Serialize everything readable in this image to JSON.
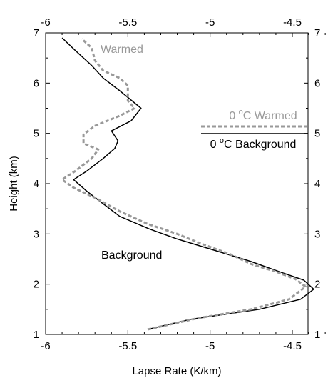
{
  "chart_data": {
    "type": "line",
    "xlabel": "Lapse Rate (K/km)",
    "ylabel": "Height (km)",
    "xlim": [
      -6,
      -4.3
    ],
    "ylim": [
      1,
      7
    ],
    "xticks": [
      -6,
      -5.5,
      -5,
      -4.5
    ],
    "xtick_labels": [
      "-6",
      "-5.5",
      "-5",
      "-4.5"
    ],
    "top_xtick_labels": [
      "-6",
      "-5.5",
      "-5",
      "-4.5"
    ],
    "yticks": [
      1,
      2,
      3,
      4,
      5,
      6,
      7
    ],
    "ytick_labels": [
      "1",
      "2",
      "3",
      "4",
      "5",
      "6",
      "7"
    ],
    "right_ytick_labels": [
      "1",
      "2",
      "3",
      "4",
      "5",
      "6",
      "7"
    ],
    "grid": false,
    "series": [
      {
        "name": "Background",
        "color": "#000000",
        "dash": "solid",
        "points": [
          [
            -5.38,
            1.1
          ],
          [
            -5.12,
            1.3
          ],
          [
            -4.7,
            1.5
          ],
          [
            -4.45,
            1.7
          ],
          [
            -4.37,
            1.9
          ],
          [
            -4.43,
            2.08
          ],
          [
            -4.58,
            2.25
          ],
          [
            -4.75,
            2.45
          ],
          [
            -4.95,
            2.65
          ],
          [
            -5.2,
            2.9
          ],
          [
            -5.37,
            3.1
          ],
          [
            -5.55,
            3.35
          ],
          [
            -5.65,
            3.6
          ],
          [
            -5.75,
            3.85
          ],
          [
            -5.83,
            4.08
          ],
          [
            -5.75,
            4.25
          ],
          [
            -5.65,
            4.5
          ],
          [
            -5.58,
            4.7
          ],
          [
            -5.56,
            4.85
          ],
          [
            -5.6,
            5.05
          ],
          [
            -5.48,
            5.25
          ],
          [
            -5.42,
            5.5
          ],
          [
            -5.55,
            5.85
          ],
          [
            -5.65,
            6.1
          ],
          [
            -5.72,
            6.35
          ],
          [
            -5.82,
            6.65
          ],
          [
            -5.9,
            6.9
          ]
        ]
      },
      {
        "name": "Warmed",
        "color": "#999999",
        "dash": "dashed",
        "points": [
          [
            -5.38,
            1.1
          ],
          [
            -5.08,
            1.32
          ],
          [
            -4.75,
            1.5
          ],
          [
            -4.52,
            1.7
          ],
          [
            -4.42,
            1.95
          ],
          [
            -4.48,
            2.1
          ],
          [
            -4.6,
            2.25
          ],
          [
            -4.75,
            2.4
          ],
          [
            -4.88,
            2.6
          ],
          [
            -5.05,
            2.8
          ],
          [
            -5.2,
            3.0
          ],
          [
            -5.38,
            3.2
          ],
          [
            -5.55,
            3.45
          ],
          [
            -5.7,
            3.72
          ],
          [
            -5.83,
            3.92
          ],
          [
            -5.9,
            4.08
          ],
          [
            -5.82,
            4.25
          ],
          [
            -5.72,
            4.5
          ],
          [
            -5.68,
            4.68
          ],
          [
            -5.77,
            4.8
          ],
          [
            -5.77,
            4.98
          ],
          [
            -5.7,
            5.15
          ],
          [
            -5.55,
            5.35
          ],
          [
            -5.46,
            5.5
          ],
          [
            -5.5,
            5.65
          ],
          [
            -5.5,
            5.95
          ],
          [
            -5.55,
            6.1
          ],
          [
            -5.65,
            6.25
          ],
          [
            -5.7,
            6.45
          ],
          [
            -5.72,
            6.7
          ],
          [
            -5.78,
            6.88
          ]
        ]
      }
    ],
    "annotations": {
      "warmed_label": "Warmed",
      "background_label": "Background"
    },
    "legend": {
      "placement": "right",
      "entries": [
        {
          "label_pre": "0 ",
          "label_sup": "o",
          "label_post": "C Warmed",
          "color": "#999999",
          "dash": "dashed"
        },
        {
          "label_pre": "0 ",
          "label_sup": "o",
          "label_post": "C Background",
          "color": "#000000",
          "dash": "solid"
        }
      ]
    }
  }
}
